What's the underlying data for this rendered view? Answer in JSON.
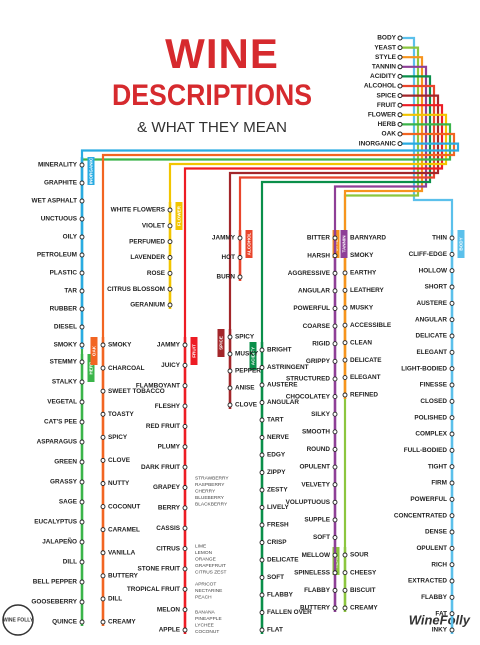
{
  "title_line1": "WINE",
  "title_line2": "DESCRIPTIONS",
  "subtitle": "& WHAT THEY MEAN",
  "brand": "WineFolly",
  "badge": "WINE FOLLY",
  "lines": [
    {
      "name": "BODY",
      "color": "#5bc0eb",
      "terms": [
        "THIN",
        "CLIFF-EDGE",
        "HOLLOW",
        "SHORT",
        "AUSTERE",
        "ANGULAR",
        "DELICATE",
        "ELEGANT",
        "LIGHT-BODIED",
        "FINESSE",
        "CLOSED",
        "POLISHED",
        "COMPLEX",
        "FULL-BODIED",
        "TIGHT",
        "FIRM",
        "POWERFUL",
        "CONCENTRATED",
        "DENSE",
        "OPULENT",
        "RICH",
        "EXTRACTED",
        "FLABBY",
        "FAT",
        "INKY"
      ]
    },
    {
      "name": "YEAST",
      "color": "#8cc63f",
      "terms": [
        "SOUR",
        "CHEESY",
        "BISCUIT",
        "CREAMY"
      ]
    },
    {
      "name": "STYLE",
      "color": "#f7941d",
      "terms": [
        "BARNYARD",
        "SMOKY",
        "EARTHY",
        "LEATHERY",
        "MUSKY",
        "ACCESSIBLE",
        "CLEAN",
        "DELICATE",
        "ELEGANT",
        "REFINED"
      ]
    },
    {
      "name": "TANNIN",
      "color": "#8e3f97",
      "terms": [
        "BITTER",
        "HARSH",
        "AGGRESSIVE",
        "ANGULAR",
        "POWERFUL",
        "COARSE",
        "RIGID",
        "GRIPPY",
        "STRUCTURED",
        "CHOCOLATEY",
        "SILKY",
        "SMOOTH",
        "ROUND",
        "OPULENT",
        "VELVETY",
        "VOLUPTUOUS",
        "SUPPLE",
        "SOFT",
        "MELLOW",
        "SPINELESS",
        "FLABBY",
        "BUTTERY"
      ]
    },
    {
      "name": "ACIDITY",
      "color": "#0a8f4a",
      "terms": [
        "BRIGHT",
        "ASTRINGENT",
        "AUSTERE",
        "ANGULAR",
        "TART",
        "NERVE",
        "EDGY",
        "ZIPPY",
        "ZESTY",
        "LIVELY",
        "FRESH",
        "CRISP",
        "DELICATE",
        "SOFT",
        "FLABBY",
        "FALLEN OVER",
        "FLAT"
      ]
    },
    {
      "name": "ALCOHOL",
      "color": "#e8452c",
      "terms": [
        "JAMMY",
        "HOT",
        "BURN"
      ]
    },
    {
      "name": "SPICE",
      "color": "#a3262a",
      "terms": [
        "SPICY",
        "MUSKY",
        "PEPPER",
        "ANISE",
        "CLOVE"
      ]
    },
    {
      "name": "FRUIT",
      "color": "#ed1c24",
      "terms": [
        "JAMMY",
        "JUICY",
        "FLAMBOYANT",
        "FLESHY",
        "RED FRUIT",
        "PLUMY",
        "DARK FRUIT",
        "GRAPEY",
        "BERRY",
        "CASSIS",
        "CITRUS",
        "STONE FRUIT",
        "TROPICAL FRUIT",
        "MELON",
        "APPLE"
      ],
      "groups": [
        [
          "STRAWBERRY",
          "RASPBERRY",
          "CHERRY",
          "BLUEBERRY",
          "BLACKBERRY"
        ],
        [
          "LIME",
          "LEMON",
          "ORANGE",
          "GRAPEFRUIT",
          "CITRUS ZEST"
        ],
        [
          "APRICOT",
          "NECTARINE",
          "PEACH"
        ],
        [
          "BANANA",
          "PINEAPPLE",
          "LYCHEE",
          "COCONUT"
        ]
      ]
    },
    {
      "name": "FLOWER",
      "color": "#f2c500",
      "terms": [
        "WHITE FLOWERS",
        "VIOLET",
        "PERFUMED",
        "LAVENDER",
        "ROSE",
        "CITRUS BLOSSOM",
        "GERANIUM"
      ]
    },
    {
      "name": "HERB",
      "color": "#3bb54a",
      "terms": [
        "STEMMY",
        "STALKY",
        "VEGETAL",
        "CAT'S PEE",
        "ASPARAGUS",
        "GREEN",
        "GRASSY",
        "SAGE",
        "EUCALYPTUS",
        "JALAPEÑO",
        "DILL",
        "BELL PEPPER",
        "GOOSEBERRY",
        "QUINCE"
      ]
    },
    {
      "name": "OAK",
      "color": "#f26522",
      "terms": [
        "SMOKY",
        "CHARCOAL",
        "SWEET TOBACCO",
        "TOASTY",
        "SPICY",
        "CLOVE",
        "NUTTY",
        "COCONUT",
        "CARAMEL",
        "VANILLA",
        "BUTTERY",
        "DILL",
        "CREAMY"
      ]
    },
    {
      "name": "INORGANIC",
      "color": "#29abe2",
      "terms": [
        "MINERALITY",
        "GRAPHITE",
        "WET ASPHALT",
        "UNCTUOUS",
        "OILY",
        "PETROLEUM",
        "PLASTIC",
        "TAR",
        "RUBBER",
        "DIESEL",
        "SMOKY"
      ]
    }
  ]
}
